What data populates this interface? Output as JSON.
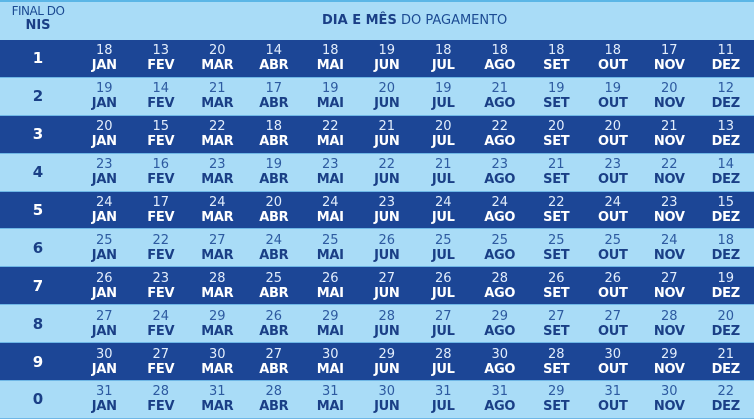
{
  "header": {
    "nis_line1": "FINAL DO",
    "nis_line2": "NIS",
    "title_bold": "DIA E MÊS",
    "title_rest": " DO PAGAMENTO"
  },
  "months": [
    "JAN",
    "FEV",
    "MAR",
    "ABR",
    "MAI",
    "JUN",
    "JUL",
    "AGO",
    "SET",
    "OUT",
    "NOV",
    "DEZ"
  ],
  "rows": [
    {
      "nis": "1",
      "style": "dark",
      "days": [
        "18",
        "13",
        "20",
        "14",
        "18",
        "19",
        "18",
        "18",
        "18",
        "18",
        "17",
        "11"
      ]
    },
    {
      "nis": "2",
      "style": "light",
      "days": [
        "19",
        "14",
        "21",
        "17",
        "19",
        "20",
        "19",
        "21",
        "19",
        "19",
        "20",
        "12"
      ]
    },
    {
      "nis": "3",
      "style": "dark",
      "days": [
        "20",
        "15",
        "22",
        "18",
        "22",
        "21",
        "20",
        "22",
        "20",
        "20",
        "21",
        "13"
      ]
    },
    {
      "nis": "4",
      "style": "light",
      "days": [
        "23",
        "16",
        "23",
        "19",
        "23",
        "22",
        "21",
        "23",
        "21",
        "23",
        "22",
        "14"
      ]
    },
    {
      "nis": "5",
      "style": "dark",
      "days": [
        "24",
        "17",
        "24",
        "20",
        "24",
        "23",
        "24",
        "24",
        "22",
        "24",
        "23",
        "15"
      ]
    },
    {
      "nis": "6",
      "style": "light",
      "days": [
        "25",
        "22",
        "27",
        "24",
        "25",
        "26",
        "25",
        "25",
        "25",
        "25",
        "24",
        "18"
      ]
    },
    {
      "nis": "7",
      "style": "dark",
      "days": [
        "26",
        "23",
        "28",
        "25",
        "26",
        "27",
        "26",
        "28",
        "26",
        "26",
        "27",
        "19"
      ]
    },
    {
      "nis": "8",
      "style": "light",
      "days": [
        "27",
        "24",
        "29",
        "26",
        "29",
        "28",
        "27",
        "29",
        "27",
        "27",
        "28",
        "20"
      ]
    },
    {
      "nis": "9",
      "style": "dark",
      "days": [
        "30",
        "27",
        "30",
        "27",
        "30",
        "29",
        "28",
        "30",
        "28",
        "30",
        "29",
        "21"
      ]
    },
    {
      "nis": "0",
      "style": "light",
      "days": [
        "31",
        "28",
        "31",
        "28",
        "31",
        "30",
        "31",
        "31",
        "29",
        "31",
        "30",
        "22"
      ]
    }
  ],
  "colors": {
    "dark_row": "#1c4696",
    "light_row": "#a9dcf7",
    "text_dark_blue": "#1a3f86"
  }
}
